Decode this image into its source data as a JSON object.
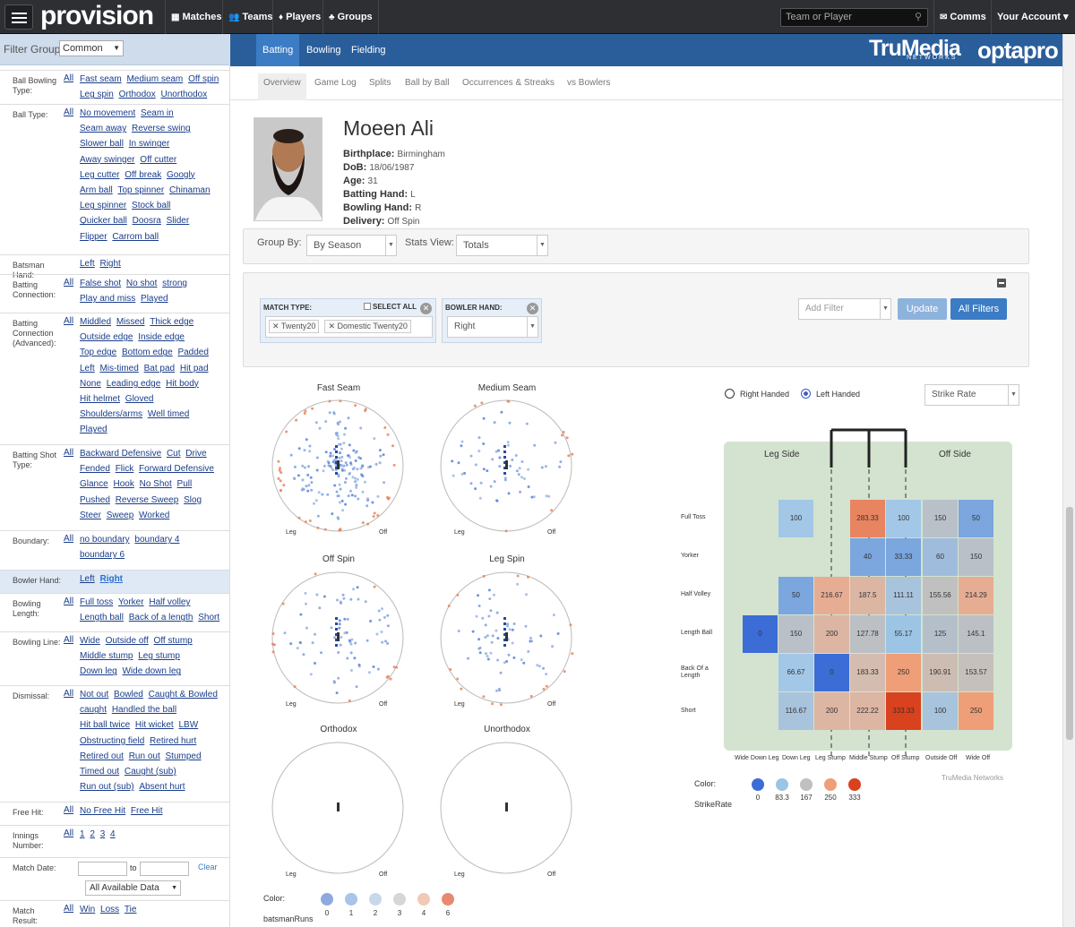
{
  "nav": {
    "brand": "provision",
    "items": [
      "Matches",
      "Teams",
      "Players",
      "Groups"
    ],
    "search_placeholder": "Team or Player",
    "comms": "Comms",
    "account": "Your Account"
  },
  "sidebar": {
    "filter_group_label": "Filter Group:",
    "filter_group_value": "Common",
    "rows": [
      {
        "label": "Ball Bowling Type:",
        "all": "All",
        "opts": [
          "Fast seam",
          "Medium seam",
          "Off spin",
          "Leg spin",
          "Orthodox",
          "Unorthodox"
        ]
      },
      {
        "label": "Ball Type:",
        "all": "All",
        "opts": [
          "No movement",
          "Seam in",
          "Seam away",
          "Reverse swing",
          "Slower ball",
          "In swinger",
          "Away swinger",
          "Off cutter",
          "Leg cutter",
          "Off break",
          "Googly",
          "Arm ball",
          "Top spinner",
          "Chinaman",
          "Leg spinner",
          "Stock ball",
          "Quicker ball",
          "Doosra",
          "Slider",
          "Flipper",
          "Carrom ball"
        ]
      },
      {
        "label": "Batsman Hand:",
        "all": "",
        "opts": [
          "Left",
          "Right"
        ]
      },
      {
        "label": "Batting Connection:",
        "all": "All",
        "opts": [
          "False shot",
          "No shot",
          "strong",
          "Play and miss",
          "Played"
        ]
      },
      {
        "label": "Batting Connection (Advanced):",
        "all": "All",
        "opts": [
          "Middled",
          "Missed",
          "Thick edge",
          "Outside edge",
          "Inside edge",
          "Top edge",
          "Bottom edge",
          "Padded",
          "Left",
          "Mis-timed",
          "Bat pad",
          "Hit pad",
          "None",
          "Leading edge",
          "Hit body",
          "Hit helmet",
          "Gloved",
          "Shoulders/arms",
          "Well timed",
          "Played"
        ]
      },
      {
        "label": "Batting Shot Type:",
        "all": "All",
        "opts": [
          "Backward Defensive",
          "Cut",
          "Drive",
          "Fended",
          "Flick",
          "Forward Defensive",
          "Glance",
          "Hook",
          "No Shot",
          "Pull",
          "Pushed",
          "Reverse Sweep",
          "Slog",
          "Steer",
          "Sweep",
          "Worked"
        ]
      },
      {
        "label": "Boundary:",
        "all": "All",
        "opts": [
          "no boundary",
          "boundary 4",
          "boundary 6"
        ]
      },
      {
        "label": "Bowler Hand:",
        "all": "",
        "opts": [
          "Left",
          "Right"
        ]
      },
      {
        "label": "Bowling Length:",
        "all": "All",
        "opts": [
          "Full toss",
          "Yorker",
          "Half volley",
          "Length ball",
          "Back of a length",
          "Short"
        ]
      },
      {
        "label": "Bowling Line:",
        "all": "All",
        "opts": [
          "Wide",
          "Outside off",
          "Off stump",
          "Middle stump",
          "Leg stump",
          "Down leg",
          "Wide down leg"
        ]
      },
      {
        "label": "Dismissal:",
        "all": "All",
        "opts": [
          "Not out",
          "Bowled",
          "Caught & Bowled",
          "caught",
          "Handled the ball",
          "Hit ball twice",
          "Hit wicket",
          "LBW",
          "Obstructing field",
          "Retired hurt",
          "Retired out",
          "Run out",
          "Stumped",
          "Timed out",
          "Caught (sub)",
          "Run out (sub)",
          "Absent hurt"
        ]
      },
      {
        "label": "Free Hit:",
        "all": "All",
        "opts": [
          "No Free Hit",
          "Free Hit"
        ]
      },
      {
        "label": "Innings Number:",
        "all": "All",
        "opts": [
          "1",
          "2",
          "3",
          "4"
        ]
      },
      {
        "label": "Match Date:",
        "all": "",
        "opts": []
      },
      {
        "label": "Match Result:",
        "all": "All",
        "opts": [
          "Win",
          "Loss",
          "Tie"
        ]
      }
    ],
    "date_to": "to",
    "date_clear": "Clear",
    "date_select": "All Available Data"
  },
  "main_tabs": [
    "Batting",
    "Bowling",
    "Fielding"
  ],
  "sub_tabs": [
    "Overview",
    "Game Log",
    "Splits",
    "Ball by Ball",
    "Occurrences & Streaks",
    "vs Bowlers"
  ],
  "logos": {
    "trumedia": "TruMedia",
    "trumedia_sub": "NETWORKS",
    "opta": "optapro"
  },
  "player": {
    "name": "Moeen Ali",
    "fields": [
      {
        "k": "Birthplace:",
        "v": "Birmingham"
      },
      {
        "k": "DoB:",
        "v": "18/06/1987"
      },
      {
        "k": "Age:",
        "v": "31"
      },
      {
        "k": "Batting Hand:",
        "v": "L"
      },
      {
        "k": "Bowling Hand:",
        "v": "R"
      },
      {
        "k": "Delivery:",
        "v": "Off Spin"
      }
    ]
  },
  "controls": {
    "group_by_label": "Group By:",
    "group_by_value": "By Season",
    "stats_view_label": "Stats View:",
    "stats_view_value": "Totals"
  },
  "filters": {
    "match_type_title": "MATCH TYPE:",
    "select_all": "SELECT ALL",
    "match_type_tags": [
      "Twenty20",
      "Domestic Twenty20"
    ],
    "bowler_hand_title": "BOWLER HAND:",
    "bowler_hand_value": "Right",
    "add_filter": "Add Filter",
    "update": "Update",
    "all_filters": "All Filters"
  },
  "wagons": {
    "titles": [
      "Fast Seam",
      "Medium Seam",
      "Off Spin",
      "Leg Spin",
      "Orthodox",
      "Unorthodox"
    ],
    "leg": "Leg",
    "off": "Off",
    "legend_title": "Color:",
    "legend_sub": "batsmanRuns",
    "legend_vals": [
      "0",
      "1",
      "2",
      "3",
      "4",
      "6"
    ],
    "legend_colors": [
      "#8fa9e0",
      "#a8c4e8",
      "#c8d8ec",
      "#d6d6d6",
      "#f1c9b7",
      "#e88a70"
    ]
  },
  "heatmap": {
    "radio_right": "Right Handed",
    "radio_left": "Left Handed",
    "metric": "Strike Rate",
    "leg_side": "Leg Side",
    "off_side": "Off Side",
    "rows": [
      "Full Toss",
      "Yorker",
      "Half Volley",
      "Length Ball",
      "Back Of a Length",
      "Short"
    ],
    "cols": [
      "Wide Down Leg",
      "Down Leg",
      "Leg Stump",
      "Middle Stump",
      "Off Stump",
      "Outside Off",
      "Wide Off"
    ],
    "values": [
      [
        null,
        "100",
        null,
        "283.33",
        "100",
        "150",
        "50"
      ],
      [
        null,
        null,
        null,
        "40",
        "33.33",
        "60",
        "150"
      ],
      [
        null,
        "50",
        "216.67",
        "187.5",
        "111.11",
        "155.56",
        "214.29"
      ],
      [
        "0",
        "150",
        "200",
        "127.78",
        "55.17",
        "125",
        "145.1"
      ],
      [
        null,
        "66.67",
        "0",
        "183.33",
        "250",
        "190.91",
        "153.57"
      ],
      [
        null,
        "116.67",
        "200",
        "222.22",
        "333.33",
        "100",
        "250"
      ]
    ],
    "colors": [
      [
        null,
        "#a3c7e6",
        null,
        "#e8845f",
        "#a3c7e6",
        "#b9c0c8",
        "#7ba6de"
      ],
      [
        null,
        null,
        null,
        "#7ba6de",
        "#7ba6de",
        "#a0bcdc",
        "#b9c0c8"
      ],
      [
        null,
        "#7ba6de",
        "#e7ad92",
        "#dcb5a3",
        "#a8c3dc",
        "#c0c0c0",
        "#e7ad92"
      ],
      [
        "#3c6dd6",
        "#b9c0c8",
        "#dcb5a3",
        "#bcc0c5",
        "#9cc4e4",
        "#b5bfc9",
        "#bcc0c5"
      ],
      [
        null,
        "#a3c7e6",
        "#3c6dd6",
        "#d4bdb0",
        "#ee9f78",
        "#ccbcb2",
        "#c6c0bc"
      ],
      [
        null,
        "#a8c3dc",
        "#dcb5a3",
        "#dcb5a3",
        "#d8421e",
        "#a8c3dc",
        "#ee9f78"
      ]
    ],
    "legend_title": "Color:",
    "legend_sub": "StrikeRate",
    "legend_vals": [
      "0",
      "83.3",
      "167",
      "250",
      "333"
    ],
    "legend_colors": [
      "#3c6dd6",
      "#9cc4e4",
      "#c0c0c0",
      "#ee9f78",
      "#d8421e"
    ],
    "credit": "TruMedia Networks"
  }
}
